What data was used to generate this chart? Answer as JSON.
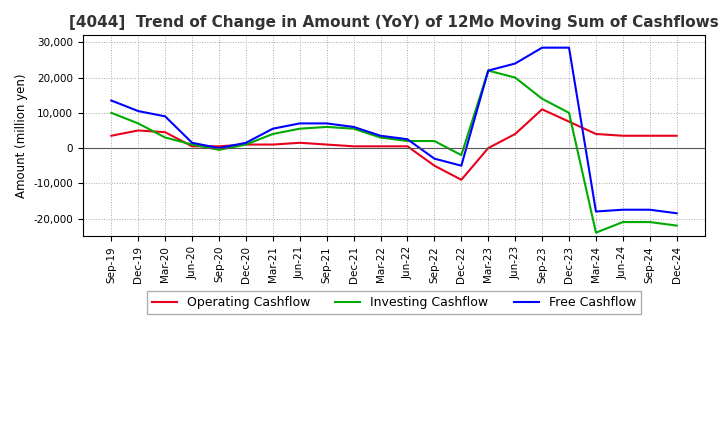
{
  "title": "[4044]  Trend of Change in Amount (YoY) of 12Mo Moving Sum of Cashflows",
  "ylabel": "Amount (million yen)",
  "xlabels": [
    "Sep-19",
    "Dec-19",
    "Mar-20",
    "Jun-20",
    "Sep-20",
    "Dec-20",
    "Mar-21",
    "Jun-21",
    "Sep-21",
    "Dec-21",
    "Mar-22",
    "Jun-22",
    "Sep-22",
    "Dec-22",
    "Mar-23",
    "Jun-23",
    "Sep-23",
    "Dec-23",
    "Mar-24",
    "Jun-24",
    "Sep-24",
    "Dec-24"
  ],
  "operating": [
    3500,
    5000,
    4500,
    500,
    500,
    1000,
    1000,
    1500,
    1000,
    500,
    500,
    500,
    -5000,
    -9000,
    0,
    4000,
    11000,
    7500,
    4000,
    3500,
    3500,
    3500
  ],
  "investing": [
    10000,
    7000,
    3000,
    1000,
    -500,
    1000,
    4000,
    5500,
    6000,
    5500,
    3000,
    2000,
    2000,
    -2000,
    22000,
    20000,
    14000,
    10000,
    -24000,
    -21000,
    -21000,
    -22000
  ],
  "free": [
    13500,
    10500,
    9000,
    1500,
    0,
    1500,
    5500,
    7000,
    7000,
    6000,
    3500,
    2500,
    -3000,
    -5000,
    22000,
    24000,
    28500,
    28500,
    -18000,
    -17500,
    -17500,
    -18500
  ],
  "operating_color": "#e8001c",
  "investing_color": "#00aa00",
  "free_color": "#0000ff",
  "ylim": [
    -25000,
    32000
  ],
  "yticks": [
    -20000,
    -10000,
    0,
    10000,
    20000,
    30000
  ],
  "grid_color": "#aaaaaa",
  "background_color": "#ffffff",
  "title_fontsize": 11,
  "title_color": "#333333"
}
